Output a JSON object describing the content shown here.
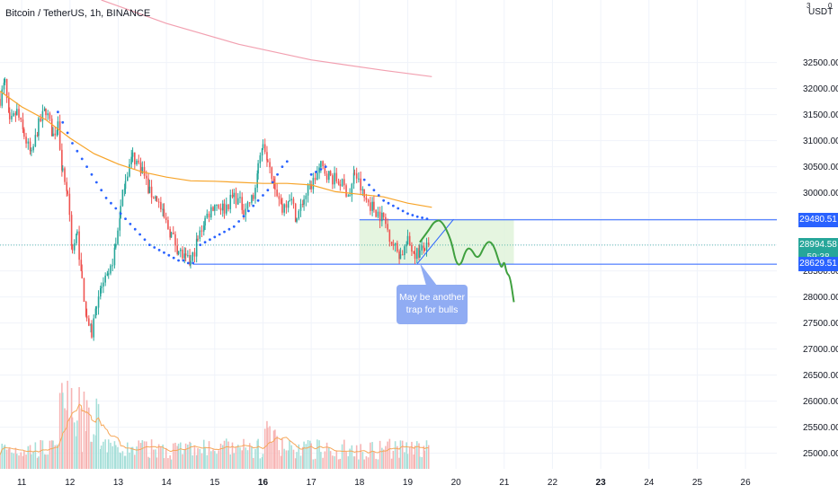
{
  "header": {
    "title": "Bitcoin / TetherUS, 1h, BINANCE",
    "currency": "USDT",
    "currency_top": "3",
    "currency_right": "0"
  },
  "chart_data": {
    "type": "candlestick",
    "symbol": "Bitcoin / TetherUS",
    "interval": "1h",
    "exchange": "BINANCE",
    "currency": "USDT",
    "ylim": [
      24700,
      33700
    ],
    "y_ticks": [
      25000,
      25500,
      26000,
      26500,
      27000,
      27500,
      28000,
      28500,
      29000,
      29500,
      30000,
      30500,
      31000,
      31500,
      32000,
      32500
    ],
    "y_tick_labels": [
      "25000.00",
      "25500.00",
      "26000.00",
      "26500.00",
      "27000.00",
      "27500.00",
      "28000.00",
      "28500.00",
      "29000.00",
      "29500.00",
      "30000.00",
      "30500.00",
      "31000.00",
      "31500.00",
      "32000.00",
      "32500.00"
    ],
    "xlim": [
      10.55,
      26.65
    ],
    "x_ticks": [
      11,
      12,
      13,
      14,
      15,
      16,
      17,
      18,
      19,
      20,
      21,
      22,
      23,
      24,
      25,
      26
    ],
    "x_tick_labels": [
      "11",
      "12",
      "13",
      "14",
      "15",
      "16",
      "17",
      "18",
      "19",
      "20",
      "21",
      "22",
      "23",
      "24",
      "25",
      "26"
    ],
    "x_tick_bold": [
      16,
      23
    ],
    "grid": true,
    "candle_anchors": [
      [
        10.55,
        31800
      ],
      [
        10.65,
        32100
      ],
      [
        10.75,
        31300
      ],
      [
        10.9,
        31550
      ],
      [
        11.05,
        31100
      ],
      [
        11.2,
        30700
      ],
      [
        11.35,
        31300
      ],
      [
        11.5,
        31600
      ],
      [
        11.65,
        31100
      ],
      [
        11.75,
        31300
      ],
      [
        11.85,
        30400
      ],
      [
        11.95,
        30000
      ],
      [
        12.05,
        28900
      ],
      [
        12.15,
        29200
      ],
      [
        12.25,
        28300
      ],
      [
        12.35,
        27600
      ],
      [
        12.45,
        27300
      ],
      [
        12.55,
        27900
      ],
      [
        12.65,
        28200
      ],
      [
        12.8,
        28350
      ],
      [
        12.95,
        29000
      ],
      [
        13.05,
        29700
      ],
      [
        13.15,
        30300
      ],
      [
        13.3,
        30700
      ],
      [
        13.5,
        30450
      ],
      [
        13.65,
        30000
      ],
      [
        13.8,
        29900
      ],
      [
        13.95,
        29500
      ],
      [
        14.1,
        29200
      ],
      [
        14.25,
        28900
      ],
      [
        14.4,
        28700
      ],
      [
        14.5,
        28650
      ],
      [
        14.65,
        29100
      ],
      [
        14.8,
        29500
      ],
      [
        15.0,
        29800
      ],
      [
        15.2,
        29700
      ],
      [
        15.4,
        29950
      ],
      [
        15.6,
        29700
      ],
      [
        15.8,
        29900
      ],
      [
        15.9,
        30450
      ],
      [
        16.0,
        31000
      ],
      [
        16.1,
        30700
      ],
      [
        16.25,
        30150
      ],
      [
        16.4,
        29700
      ],
      [
        16.55,
        29950
      ],
      [
        16.7,
        29500
      ],
      [
        16.85,
        29900
      ],
      [
        17.0,
        30150
      ],
      [
        17.2,
        30500
      ],
      [
        17.4,
        30300
      ],
      [
        17.6,
        30200
      ],
      [
        17.8,
        29950
      ],
      [
        17.9,
        30400
      ],
      [
        18.1,
        29900
      ],
      [
        18.3,
        29700
      ],
      [
        18.5,
        29500
      ],
      [
        18.7,
        29000
      ],
      [
        18.85,
        28800
      ],
      [
        19.0,
        29050
      ],
      [
        19.15,
        28850
      ],
      [
        19.25,
        28850
      ],
      [
        19.35,
        28950
      ],
      [
        19.45,
        28900
      ]
    ],
    "volume_scale_max": 1000,
    "volume_seed": 7,
    "moving_average_orange": [
      [
        10.55,
        31950
      ],
      [
        11.0,
        31650
      ],
      [
        11.5,
        31400
      ],
      [
        12.0,
        31050
      ],
      [
        12.5,
        30750
      ],
      [
        13.0,
        30550
      ],
      [
        13.5,
        30400
      ],
      [
        14.0,
        30300
      ],
      [
        14.5,
        30230
      ],
      [
        15.0,
        30220
      ],
      [
        15.5,
        30200
      ],
      [
        16.0,
        30180
      ],
      [
        16.5,
        30180
      ],
      [
        17.0,
        30150
      ],
      [
        17.5,
        30020
      ],
      [
        18.0,
        29970
      ],
      [
        18.5,
        29920
      ],
      [
        19.0,
        29800
      ],
      [
        19.5,
        29720
      ]
    ],
    "moving_average_pink": [
      [
        12.65,
        33700
      ],
      [
        14.0,
        33250
      ],
      [
        15.5,
        32850
      ],
      [
        17.0,
        32550
      ],
      [
        18.5,
        32350
      ],
      [
        19.5,
        32230
      ]
    ],
    "parabolic_sar": [
      [
        11.75,
        31550
      ],
      [
        11.85,
        31350
      ],
      [
        11.95,
        31150
      ],
      [
        12.05,
        30950
      ],
      [
        12.15,
        30800
      ],
      [
        12.25,
        30650
      ],
      [
        12.35,
        30500
      ],
      [
        12.45,
        30350
      ],
      [
        12.55,
        30200
      ],
      [
        12.65,
        30050
      ],
      [
        12.75,
        29900
      ],
      [
        12.85,
        29800
      ],
      [
        12.95,
        29700
      ],
      [
        13.05,
        29600
      ],
      [
        13.15,
        29500
      ],
      [
        13.25,
        29400
      ],
      [
        13.35,
        29300
      ],
      [
        13.45,
        29200
      ],
      [
        13.55,
        29100
      ],
      [
        13.65,
        29000
      ],
      [
        13.75,
        28950
      ],
      [
        13.85,
        28900
      ],
      [
        13.95,
        28850
      ],
      [
        14.05,
        28800
      ],
      [
        14.15,
        28750
      ],
      [
        14.25,
        28700
      ],
      [
        14.35,
        28700
      ],
      [
        14.45,
        28650
      ],
      [
        14.55,
        28650
      ],
      [
        14.7,
        29000
      ],
      [
        14.8,
        29050
      ],
      [
        14.9,
        29100
      ],
      [
        15.0,
        29150
      ],
      [
        15.1,
        29200
      ],
      [
        15.2,
        29250
      ],
      [
        15.3,
        29300
      ],
      [
        15.4,
        29350
      ],
      [
        15.5,
        29450
      ],
      [
        15.6,
        29550
      ],
      [
        15.7,
        29650
      ],
      [
        15.8,
        29750
      ],
      [
        15.9,
        29850
      ],
      [
        16.0,
        29950
      ],
      [
        16.1,
        30050
      ],
      [
        16.2,
        30200
      ],
      [
        16.3,
        30350
      ],
      [
        16.4,
        30500
      ],
      [
        16.5,
        30600
      ],
      [
        17.0,
        30350
      ],
      [
        17.1,
        30400
      ],
      [
        17.2,
        30450
      ],
      [
        17.3,
        30500
      ],
      [
        18.1,
        30250
      ],
      [
        18.2,
        30150
      ],
      [
        18.3,
        30050
      ],
      [
        18.4,
        29950
      ],
      [
        18.5,
        29850
      ],
      [
        18.6,
        29800
      ],
      [
        18.7,
        29750
      ],
      [
        18.8,
        29700
      ],
      [
        18.9,
        29650
      ],
      [
        19.0,
        29600
      ],
      [
        19.1,
        29570
      ],
      [
        19.2,
        29540
      ],
      [
        19.3,
        29520
      ],
      [
        19.4,
        29500
      ]
    ],
    "horizontal_levels": [
      {
        "price": 29480.51,
        "from_x": 18.0,
        "to_x": 26.65,
        "color": "#2962ff"
      },
      {
        "price": 28629.51,
        "from_x": 14.55,
        "to_x": 26.65,
        "color": "#2962ff"
      }
    ],
    "range_box": {
      "x": [
        18.0,
        21.2
      ],
      "y": [
        28629.51,
        29480.51
      ],
      "color": "#dff2d8"
    },
    "trend_line": {
      "points": [
        [
          19.2,
          28640
        ],
        [
          19.95,
          29490
        ]
      ],
      "color": "#2962ff"
    },
    "projection_path": [
      [
        19.25,
        29050
      ],
      [
        19.45,
        29300
      ],
      [
        19.55,
        29450
      ],
      [
        19.7,
        29480
      ],
      [
        19.9,
        29100
      ],
      [
        20.0,
        28650
      ],
      [
        20.1,
        28600
      ],
      [
        20.2,
        28900
      ],
      [
        20.3,
        28950
      ],
      [
        20.45,
        28700
      ],
      [
        20.6,
        29000
      ],
      [
        20.7,
        29080
      ],
      [
        20.8,
        28950
      ],
      [
        20.9,
        28650
      ],
      [
        20.95,
        28550
      ],
      [
        21.0,
        28700
      ],
      [
        21.05,
        28450
      ],
      [
        21.12,
        28400
      ],
      [
        21.2,
        27900
      ]
    ],
    "projection_color": "#3fa03f",
    "price_labels": [
      {
        "price": 29480.51,
        "text": "29480.51",
        "background": "#2962ff"
      },
      {
        "price": 28994.58,
        "text": "28994.58",
        "countdown": "59:38",
        "background": "#26a69a"
      },
      {
        "price": 28629.51,
        "text": "28629.51",
        "background": "#2962ff"
      }
    ],
    "annotation": {
      "lines": [
        "May be another",
        "trap for bulls"
      ],
      "pointer_target": [
        19.25,
        28650
      ]
    }
  }
}
